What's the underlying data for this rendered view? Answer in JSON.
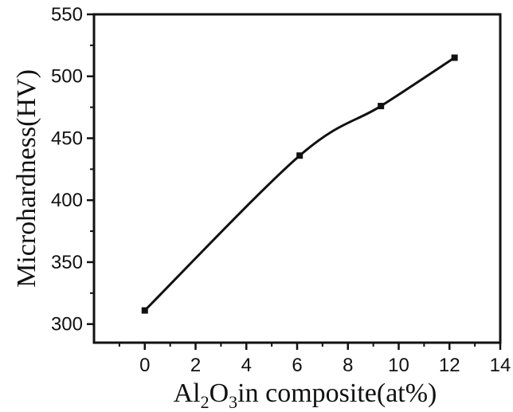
{
  "chart_data": {
    "type": "line",
    "title": "",
    "xlabel": {
      "parts": [
        {
          "text": "Al",
          "sub": false
        },
        {
          "text": "2",
          "sub": true
        },
        {
          "text": "O",
          "sub": false
        },
        {
          "text": "3",
          "sub": true
        },
        {
          "text": "in composite(at%)",
          "sub": false
        }
      ]
    },
    "ylabel": "Microhardness(HV)",
    "xlim": [
      -2,
      14
    ],
    "ylim": [
      285,
      550
    ],
    "xticks": [
      "0",
      "2",
      "4",
      "6",
      "8",
      "10",
      "12",
      "14"
    ],
    "yticks": [
      "300",
      "350",
      "400",
      "450",
      "500",
      "550"
    ],
    "series": [
      {
        "x": [
          0,
          6.1,
          9.3,
          12.2
        ],
        "y": [
          311,
          436,
          476,
          515
        ]
      }
    ],
    "grid": false,
    "line_color": "#111111",
    "marker": "square"
  }
}
